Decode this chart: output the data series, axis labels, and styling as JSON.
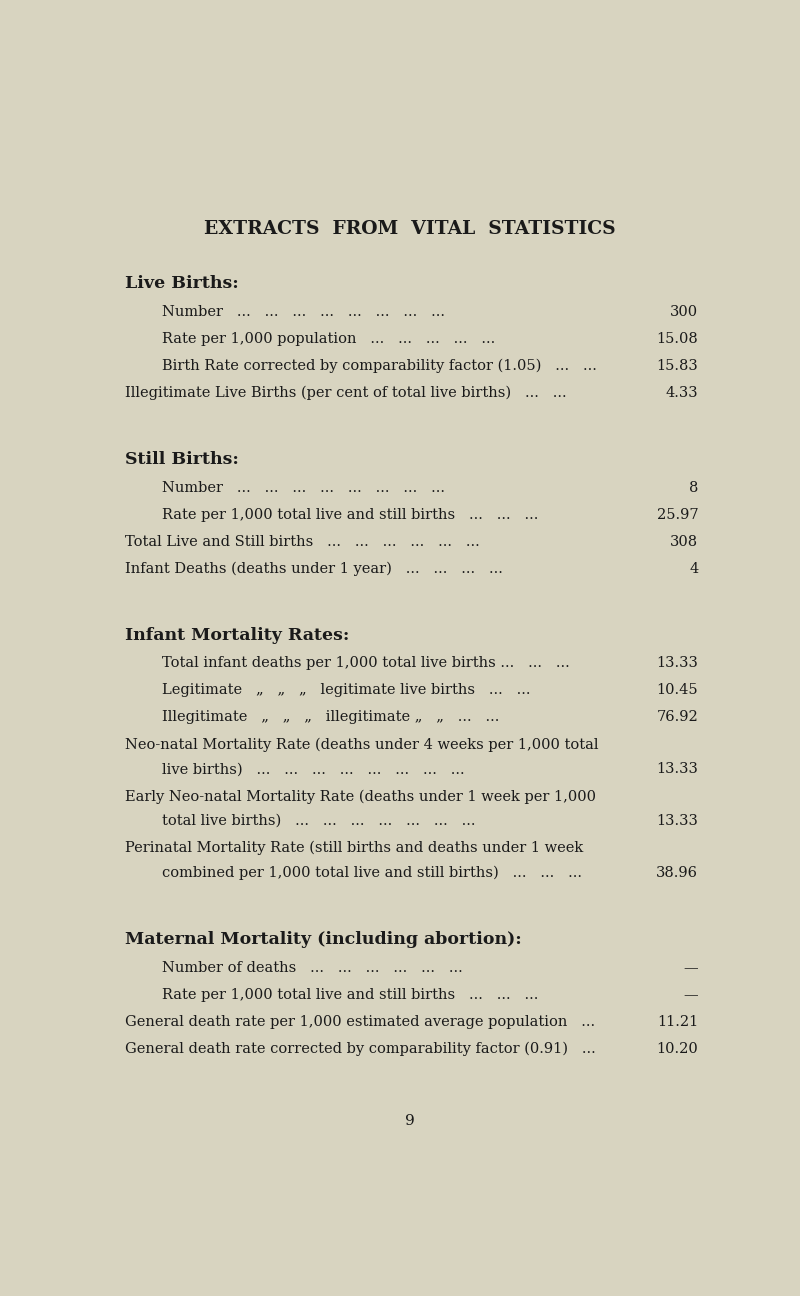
{
  "bg_color": "#d8d4c0",
  "text_color": "#1a1a1a",
  "title": "EXTRACTS  FROM  VITAL  STATISTICS",
  "page_number": "9",
  "sections": [
    {
      "heading": "Live Births:",
      "items": [
        {
          "label": "Number   ...   ...   ...   ...   ...   ...   ...   ...",
          "value": "300",
          "indent": 1
        },
        {
          "label": "Rate per 1,000 population   ...   ...   ...   ...   ...",
          "value": "15.08",
          "indent": 1
        },
        {
          "label": "Birth Rate corrected by comparability factor (1.05)   ...   ...",
          "value": "15.83",
          "indent": 1
        },
        {
          "label": "Illegitimate Live Births (per cent of total live births)   ...   ...",
          "value": "4.33",
          "indent": 0
        }
      ]
    },
    {
      "heading": "Still Births:",
      "items": [
        {
          "label": "Number   ...   ...   ...   ...   ...   ...   ...   ...",
          "value": "8",
          "indent": 1
        },
        {
          "label": "Rate per 1,000 total live and still births   ...   ...   ...",
          "value": "25.97",
          "indent": 1
        },
        {
          "label": "Total Live and Still births   ...   ...   ...   ...   ...   ...",
          "value": "308",
          "indent": 0
        },
        {
          "label": "Infant Deaths (deaths under 1 year)   ...   ...   ...   ...",
          "value": "4",
          "indent": 0
        }
      ]
    },
    {
      "heading": "Infant Mortality Rates:",
      "items": [
        {
          "label": "Total infant deaths per 1,000 total live births ...   ...   ...",
          "value": "13.33",
          "indent": 1
        },
        {
          "label": "Legitimate   „   „   „   legitimate live births   ...   ...",
          "value": "10.45",
          "indent": 1
        },
        {
          "label": "Illegitimate   „   „   „   illegitimate „   „   ...   ...",
          "value": "76.92",
          "indent": 1
        },
        {
          "label_lines": [
            "Neo-natal Mortality Rate (deaths under 4 weeks per 1,000 total",
            "live births)   ...   ...   ...   ...   ...   ...   ...   ..."
          ],
          "value": "13.33",
          "indent": 0
        },
        {
          "label_lines": [
            "Early Neo-natal Mortality Rate (deaths under 1 week per 1,000",
            "total live births)   ...   ...   ...   ...   ...   ...   ..."
          ],
          "value": "13.33",
          "indent": 0
        },
        {
          "label_lines": [
            "Perinatal Mortality Rate (still births and deaths under 1 week",
            "combined per 1,000 total live and still births)   ...   ...   ..."
          ],
          "value": "38.96",
          "indent": 0
        }
      ]
    },
    {
      "heading": "Maternal Mortality (including abortion):",
      "items": [
        {
          "label": "Number of deaths   ...   ...   ...   ...   ...   ...",
          "value": "—",
          "indent": 1
        },
        {
          "label": "Rate per 1,000 total live and still births   ...   ...   ...",
          "value": "—",
          "indent": 1
        },
        {
          "label": "General death rate per 1,000 estimated average population   ...",
          "value": "11.21",
          "indent": 0
        },
        {
          "label": "General death rate corrected by comparability factor (0.91)   ...",
          "value": "10.20",
          "indent": 0
        }
      ]
    }
  ]
}
